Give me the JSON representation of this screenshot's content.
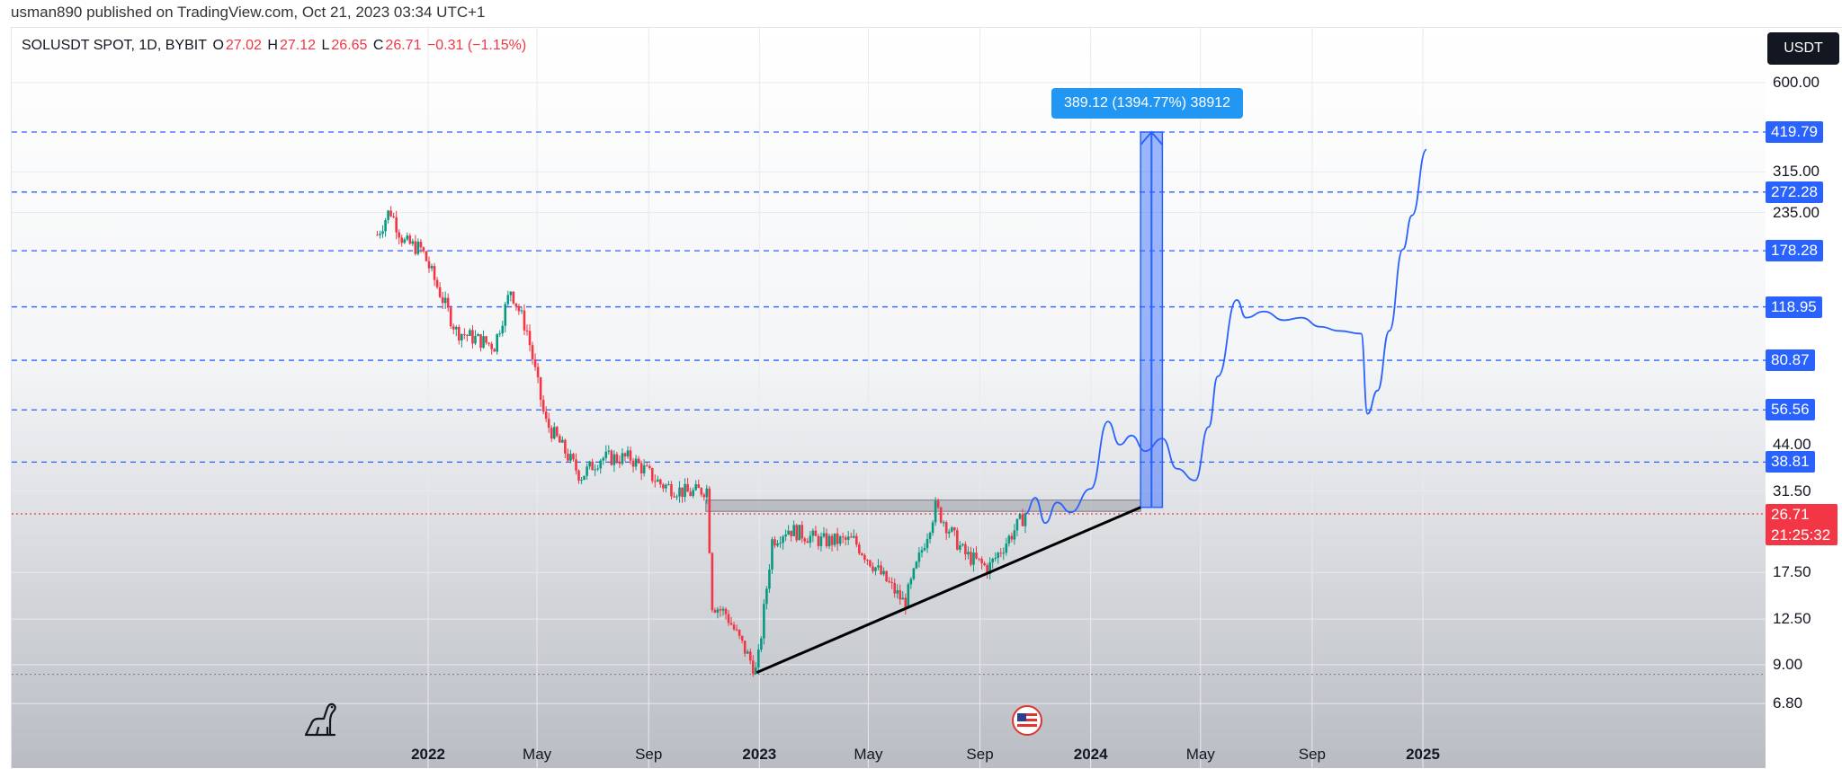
{
  "header": {
    "publish_text": "usman890 published on TradingView.com, Oct 21, 2023 03:34 UTC+1"
  },
  "legend": {
    "symbol": "SOLUSDT SPOT, 1D, BYBIT",
    "o_label": "O",
    "o_value": "27.02",
    "h_label": "H",
    "h_value": "27.12",
    "l_label": "L",
    "l_value": "26.65",
    "c_label": "C",
    "c_value": "26.71",
    "change": "−0.31 (−1.15%)"
  },
  "currency_button": "USDT",
  "measure_label": "389.12 (1394.77%) 38912",
  "last_price": {
    "value": "26.71",
    "countdown": "21:25:32"
  },
  "price_levels": [
    "419.79",
    "272.28",
    "178.28",
    "118.95",
    "80.87",
    "56.56",
    "38.81"
  ],
  "colors": {
    "accent": "#2962ff",
    "last_price": "#f23645",
    "up": "#089981",
    "down": "#f23645",
    "measure": "#2196f3"
  },
  "icons": {
    "dino": "dinosaur-icon",
    "flag": "us-flag-icon"
  },
  "chart_data": {
    "type": "line",
    "title": "SOLUSDT SPOT, 1D, BYBIT",
    "y_scale": "log",
    "y_ticks": [
      "600.00",
      "315.00",
      "235.00",
      "44.00",
      "31.50",
      "17.50",
      "12.50",
      "9.00",
      "6.80"
    ],
    "x_ticks": [
      {
        "label": "2022",
        "bold": true
      },
      {
        "label": "May",
        "bold": false
      },
      {
        "label": "Sep",
        "bold": false
      },
      {
        "label": "2023",
        "bold": true
      },
      {
        "label": "May",
        "bold": false
      },
      {
        "label": "Sep",
        "bold": false
      },
      {
        "label": "2024",
        "bold": true
      },
      {
        "label": "May",
        "bold": false
      },
      {
        "label": "Sep",
        "bold": false
      },
      {
        "label": "2025",
        "bold": true
      }
    ],
    "series": [
      {
        "x": [
          "2021-11-06",
          "2021-11-20",
          "2021-12-05",
          "2021-12-25",
          "2022-01-10",
          "2022-02-01",
          "2022-02-20",
          "2022-03-15",
          "2022-04-02",
          "2022-04-20",
          "2022-05-10",
          "2022-05-25",
          "2022-06-18",
          "2022-07-10",
          "2022-08-12",
          "2022-09-15",
          "2022-10-15",
          "2022-11-05",
          "2022-11-09",
          "2022-11-25",
          "2022-12-29",
          "2023-01-15",
          "2023-02-01",
          "2023-03-10",
          "2023-04-15",
          "2023-06-10",
          "2023-07-14",
          "2023-08-15",
          "2023-09-10",
          "2023-10-21"
        ],
        "values": [
          200,
          240,
          190,
          180,
          140,
          100,
          95,
          90,
          135,
          100,
          52,
          45,
          35,
          40,
          40,
          33,
          31,
          32,
          14,
          13,
          8.5,
          22,
          24,
          22,
          22,
          14,
          28,
          20,
          18,
          26.7
        ]
      },
      {
        "x": [
          "2023-10-21",
          "2023-11-01",
          "2023-11-12",
          "2023-11-25",
          "2023-12-10",
          "2024-01-01",
          "2024-01-20",
          "2024-02-02",
          "2024-02-15",
          "2024-03-01",
          "2024-03-20",
          "2024-04-05",
          "2024-04-25",
          "2024-05-10",
          "2024-05-20",
          "2024-06-10",
          "2024-06-20",
          "2024-07-10",
          "2024-08-01",
          "2024-08-20",
          "2024-09-10",
          "2024-10-01",
          "2024-10-25",
          "2024-11-01",
          "2024-11-12",
          "2024-11-25",
          "2024-12-10",
          "2024-12-20",
          "2025-01-05"
        ],
        "values": [
          26.7,
          30,
          25,
          29,
          27,
          32,
          52,
          44,
          47,
          42,
          46,
          37,
          34,
          50,
          72,
          125,
          110,
          115,
          108,
          110,
          103,
          100,
          98,
          55,
          65,
          100,
          180,
          230,
          370
        ]
      }
    ],
    "annotations": {
      "trendline": {
        "from": [
          "2022-12-29",
          8.5
        ],
        "to": [
          "2024-02-25",
          28
        ]
      },
      "resistance_box": {
        "from_x": "2022-11-03",
        "to_x": "2024-02-25",
        "y_low": 27.2,
        "y_high": 29.5
      },
      "measure": {
        "from_x": "2024-02-25",
        "to_x": "2024-03-20",
        "y_low": 28,
        "y_high": 419.79
      },
      "last_price": 26.71,
      "horizontal_levels": [
        419.79,
        272.28,
        178.28,
        118.95,
        80.87,
        56.56,
        38.81
      ]
    }
  }
}
